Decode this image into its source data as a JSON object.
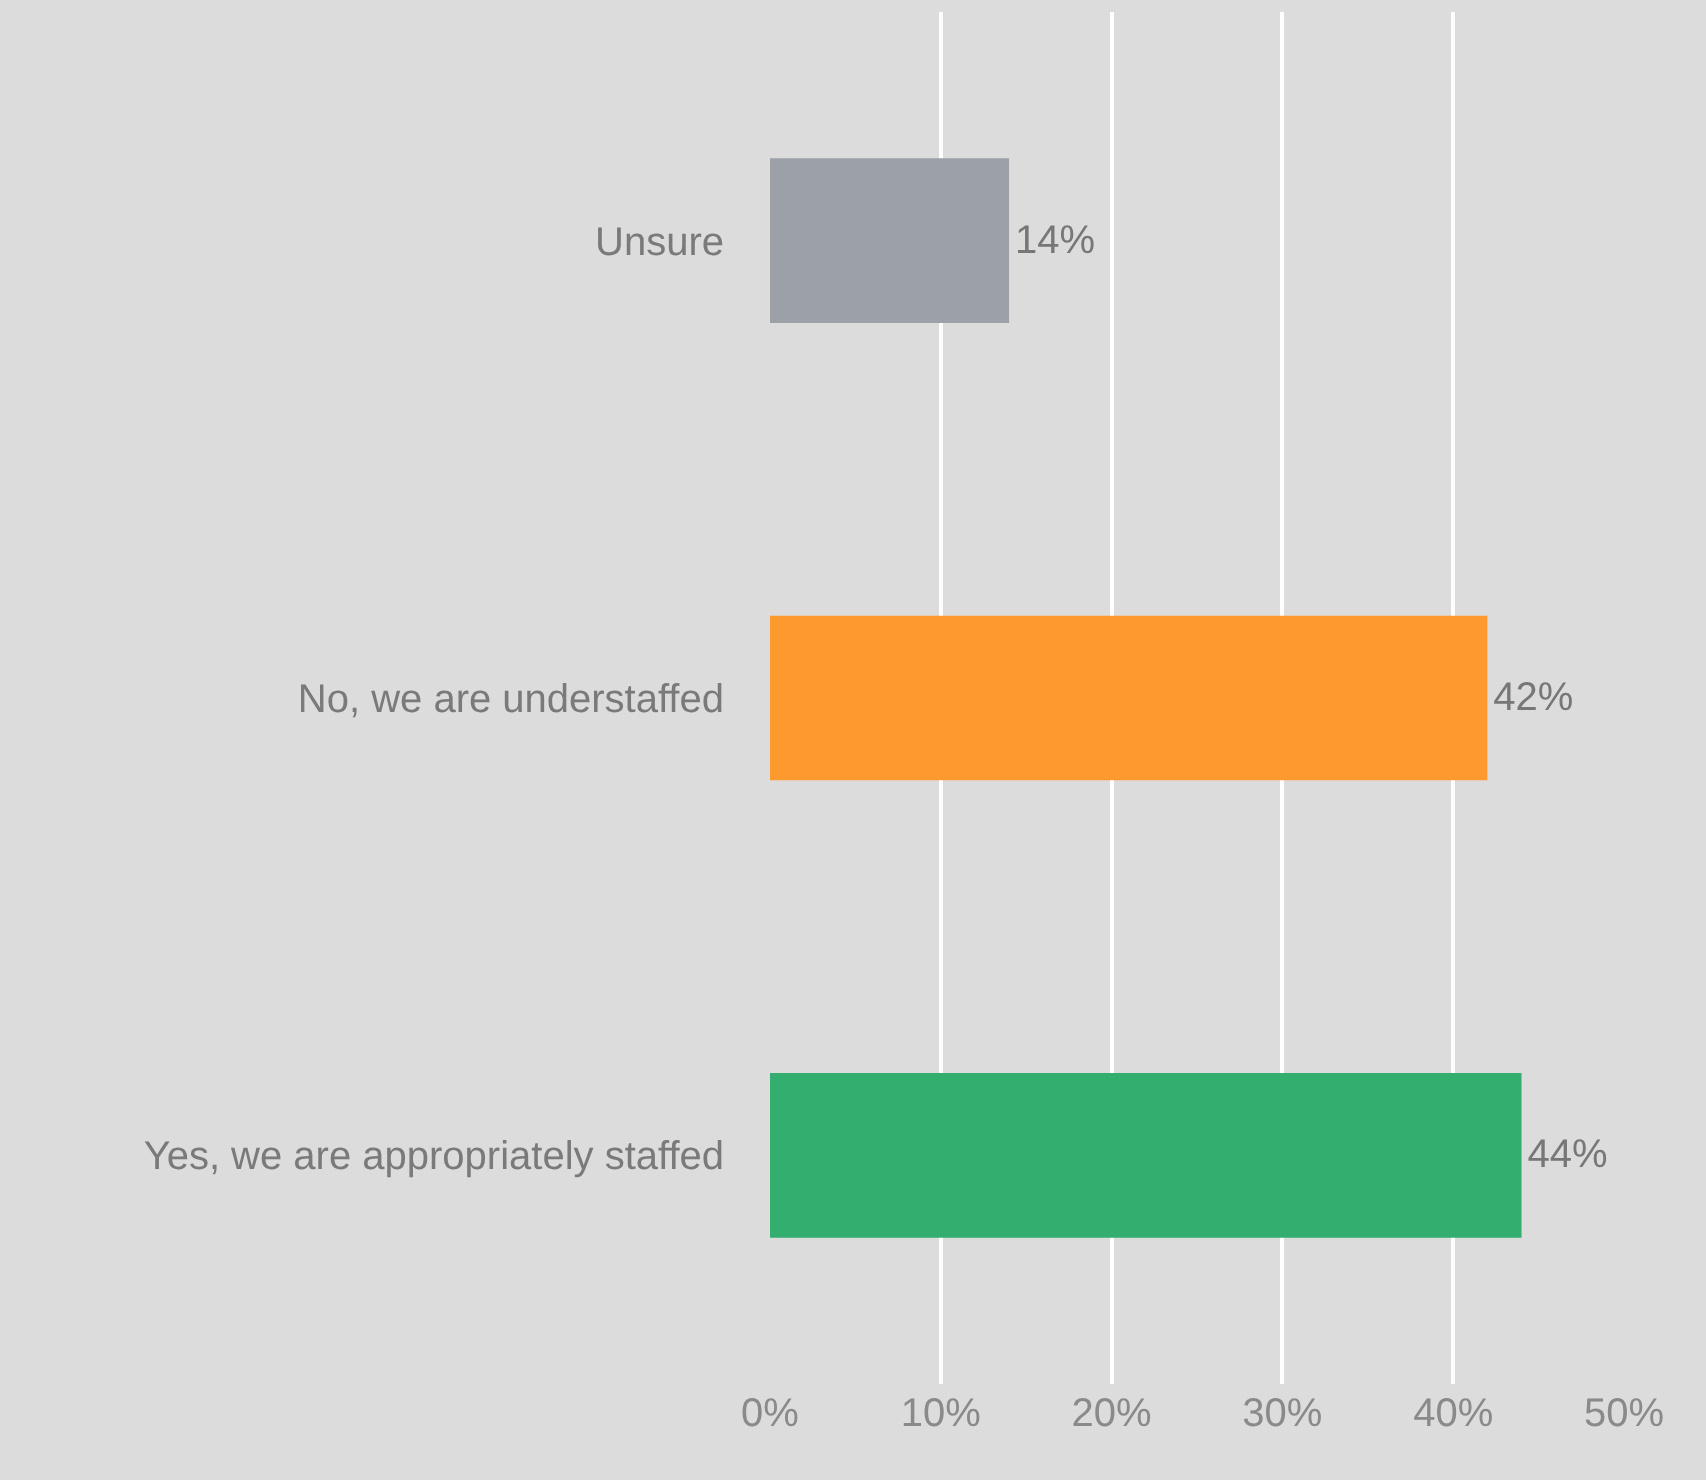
{
  "chart_data": {
    "type": "bar",
    "orientation": "horizontal",
    "categories": [
      "Unsure",
      "No, we are understaffed",
      "Yes, we are appropriately staffed"
    ],
    "values": [
      14,
      42,
      44
    ],
    "colors": [
      "#9ca0a7",
      "#fd9a2f",
      "#33ae6e"
    ],
    "value_labels": [
      "14%",
      "42%",
      "44%"
    ],
    "xlim": [
      0,
      50
    ],
    "xticks": [
      {
        "value": 0,
        "label": "0%"
      },
      {
        "value": 10,
        "label": "10%"
      },
      {
        "value": 20,
        "label": "20%"
      },
      {
        "value": 30,
        "label": "30%"
      },
      {
        "value": 40,
        "label": "40%"
      },
      {
        "value": 50,
        "label": "50%"
      }
    ],
    "grid": "x",
    "legend": false
  }
}
